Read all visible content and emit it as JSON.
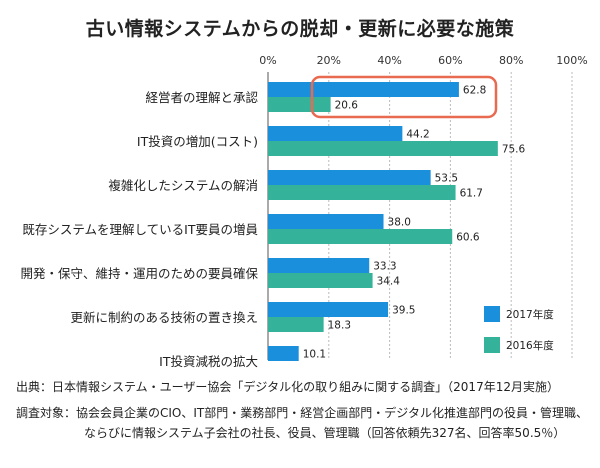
{
  "title": "古い情報システムからの脱却・更新に必要な施策",
  "chart_data": {
    "type": "bar",
    "orientation": "horizontal",
    "categories": [
      "経営者の理解と承認",
      "IT投資の増加(コスト)",
      "複雑化したシステムの解消",
      "既存システムを理解しているIT要員の増員",
      "開発・保守、維持・運用のための要員確保",
      "更新に制約のある技術の置き換え",
      "IT投資減税の拡大"
    ],
    "series": [
      {
        "name": "2017年度",
        "color": "#1a8fdc",
        "values": [
          62.8,
          44.2,
          53.5,
          38.0,
          33.3,
          39.5,
          10.1
        ]
      },
      {
        "name": "2016年度",
        "color": "#34b39a",
        "values": [
          20.6,
          75.6,
          61.7,
          60.6,
          34.4,
          18.3,
          null
        ]
      }
    ],
    "value_labels": [
      [
        "62.8",
        "44.2",
        "53.5",
        "38.0",
        "33.3",
        "39.5",
        "10.1"
      ],
      [
        "20.6",
        "75.6",
        "61.7",
        "60.6",
        "34.4",
        "18.3",
        ""
      ]
    ],
    "xlim": [
      0,
      100
    ],
    "x_ticks": [
      0,
      20,
      40,
      60,
      80,
      100
    ],
    "x_tick_labels": [
      "0%",
      "20%",
      "40%",
      "60%",
      "80%",
      "100%"
    ],
    "grid": "vertical dashed",
    "legend_position": "bottom-right",
    "highlight": {
      "category_index": 0,
      "color": "#e86a50"
    }
  },
  "notes": {
    "source": "出典：日本情報システム・ユーザー協会「デジタル化の取り組みに関する調査」（2017年12月実施）",
    "subjects_line1": "調査対象：協会会員企業のCIO、IT部門・業務部門・経営企画部門・デジタル化推進部門の役員・管理職、",
    "subjects_line2": "ならびに情報システム子会社の社長、役員、管理職（回答依頼先327名、回答率50.5％）"
  }
}
